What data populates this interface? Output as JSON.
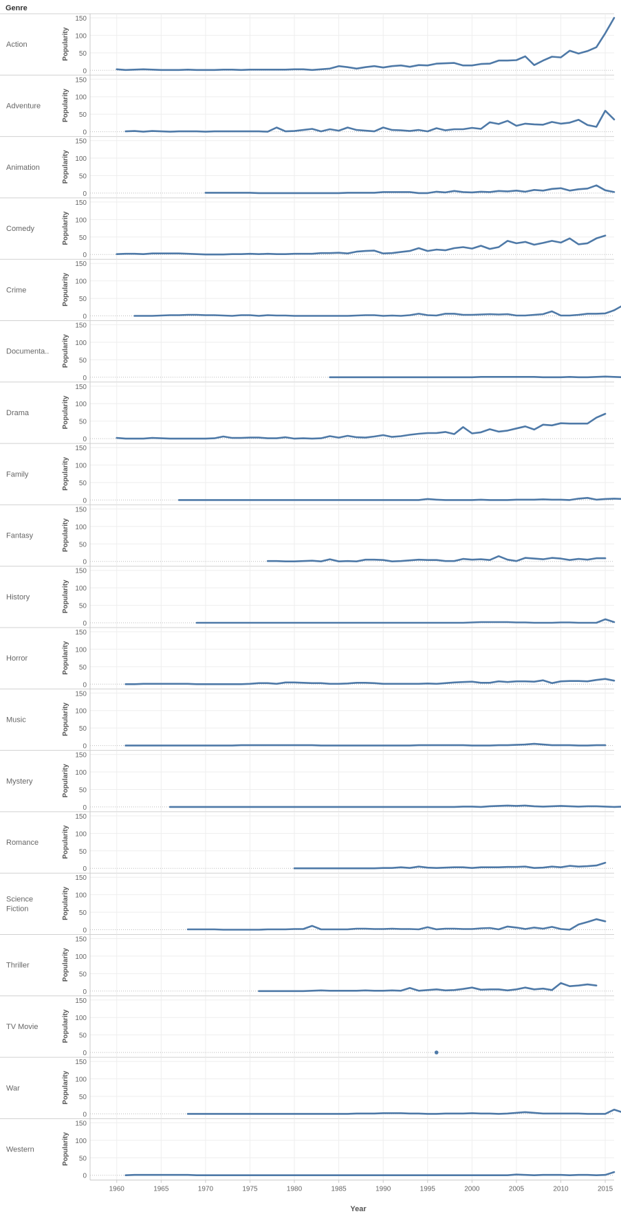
{
  "header": {
    "row_field": "Genre"
  },
  "chart_data": {
    "type": "line",
    "xlabel": "Year",
    "ylabel": "Popularity",
    "ylim": [
      0,
      150
    ],
    "yticks": [
      0,
      50,
      100,
      150
    ],
    "xlim": [
      1957,
      2016
    ],
    "xticks": [
      1960,
      1965,
      1970,
      1975,
      1980,
      1985,
      1990,
      1995,
      2000,
      2005,
      2010,
      2015
    ],
    "color": "#4e79a7",
    "grid": true,
    "panels": [
      {
        "name": "Action",
        "label_lines": [
          "Action"
        ],
        "start": 1960,
        "values": [
          3,
          1,
          2,
          3,
          2,
          1,
          1,
          1,
          2,
          1,
          1,
          1,
          2,
          2,
          1,
          2,
          2,
          2,
          2,
          2,
          3,
          3,
          1,
          3,
          5,
          12,
          9,
          5,
          9,
          12,
          8,
          12,
          14,
          10,
          15,
          14,
          19,
          20,
          21,
          14,
          14,
          18,
          19,
          28,
          28,
          29,
          40,
          15,
          28,
          39,
          37,
          56,
          48,
          55,
          66,
          106,
          150
        ]
      },
      {
        "name": "Adventure",
        "label_lines": [
          "Adventure"
        ],
        "start": 1961,
        "values": [
          1,
          2,
          0,
          2,
          1,
          0,
          1,
          1,
          1,
          0,
          1,
          1,
          1,
          1,
          1,
          1,
          0,
          12,
          1,
          2,
          5,
          8,
          1,
          7,
          3,
          12,
          5,
          3,
          1,
          12,
          5,
          4,
          2,
          5,
          1,
          10,
          4,
          7,
          7,
          11,
          8,
          27,
          22,
          31,
          17,
          23,
          21,
          20,
          28,
          23,
          26,
          34,
          19,
          14,
          60,
          35
        ]
      },
      {
        "name": "Animation",
        "label_lines": [
          "Animation"
        ],
        "start": 1970,
        "values": [
          1,
          1,
          1,
          1,
          1,
          1,
          0,
          0,
          0,
          0,
          0,
          0,
          0,
          0,
          0,
          0,
          1,
          1,
          1,
          1,
          3,
          3,
          3,
          3,
          0,
          0,
          4,
          2,
          6,
          3,
          2,
          4,
          3,
          6,
          5,
          7,
          4,
          9,
          7,
          12,
          14,
          7,
          11,
          13,
          22,
          8,
          3
        ]
      },
      {
        "name": "Comedy",
        "label_lines": [
          "Comedy"
        ],
        "start": 1960,
        "values": [
          1,
          2,
          2,
          1,
          3,
          3,
          3,
          3,
          2,
          1,
          0,
          0,
          0,
          1,
          1,
          2,
          1,
          2,
          1,
          1,
          2,
          2,
          2,
          4,
          4,
          5,
          3,
          8,
          10,
          11,
          3,
          4,
          7,
          10,
          18,
          10,
          14,
          12,
          18,
          21,
          17,
          25,
          16,
          21,
          39,
          32,
          36,
          28,
          33,
          39,
          34,
          46,
          29,
          32,
          46,
          54
        ]
      },
      {
        "name": "Crime",
        "label_lines": [
          "Crime"
        ],
        "start": 1962,
        "values": [
          0,
          0,
          0,
          1,
          2,
          2,
          3,
          3,
          2,
          2,
          1,
          0,
          2,
          2,
          0,
          2,
          1,
          1,
          0,
          0,
          0,
          0,
          0,
          0,
          0,
          1,
          2,
          2,
          0,
          1,
          0,
          2,
          6,
          2,
          1,
          6,
          6,
          3,
          3,
          4,
          5,
          4,
          5,
          1,
          1,
          3,
          5,
          13,
          1,
          1,
          3,
          6,
          6,
          7,
          16,
          30
        ]
      },
      {
        "name": "Documentary",
        "label_lines": [
          "Documenta.."
        ],
        "start": 1984,
        "values": [
          0,
          0,
          0,
          0,
          0,
          0,
          0,
          0,
          0,
          0,
          0,
          0,
          0,
          0,
          0,
          0,
          0,
          1,
          1,
          1,
          1,
          1,
          1,
          1,
          0,
          0,
          0,
          1,
          0,
          0,
          1,
          2,
          1,
          0
        ]
      },
      {
        "name": "Drama",
        "label_lines": [
          "Drama"
        ],
        "start": 1960,
        "values": [
          2,
          0,
          0,
          0,
          2,
          1,
          0,
          0,
          0,
          0,
          0,
          1,
          6,
          2,
          2,
          3,
          3,
          1,
          1,
          4,
          0,
          1,
          0,
          1,
          7,
          3,
          8,
          4,
          3,
          6,
          10,
          5,
          7,
          11,
          14,
          16,
          16,
          19,
          13,
          33,
          15,
          18,
          27,
          20,
          23,
          29,
          35,
          26,
          40,
          38,
          44,
          43,
          43,
          43,
          60,
          71
        ]
      },
      {
        "name": "Family",
        "label_lines": [
          "Family"
        ],
        "start": 1967,
        "values": [
          0,
          0,
          0,
          0,
          0,
          0,
          0,
          0,
          0,
          0,
          0,
          0,
          0,
          0,
          0,
          0,
          0,
          0,
          0,
          0,
          0,
          0,
          0,
          0,
          0,
          0,
          0,
          0,
          3,
          1,
          0,
          0,
          0,
          0,
          1,
          0,
          0,
          0,
          1,
          1,
          1,
          2,
          1,
          1,
          0,
          4,
          6,
          1,
          3,
          4,
          3,
          10
        ]
      },
      {
        "name": "Fantasy",
        "label_lines": [
          "Fantasy"
        ],
        "start": 1977,
        "values": [
          1,
          1,
          0,
          0,
          1,
          2,
          0,
          6,
          0,
          1,
          0,
          5,
          5,
          4,
          0,
          1,
          3,
          5,
          4,
          4,
          1,
          1,
          7,
          5,
          6,
          4,
          15,
          5,
          1,
          10,
          8,
          6,
          10,
          8,
          4,
          7,
          5,
          9,
          9
        ]
      },
      {
        "name": "History",
        "label_lines": [
          "History"
        ],
        "start": 1969,
        "values": [
          0,
          0,
          0,
          0,
          0,
          0,
          0,
          0,
          0,
          0,
          0,
          0,
          0,
          0,
          0,
          0,
          0,
          0,
          0,
          0,
          0,
          0,
          0,
          0,
          0,
          0,
          0,
          0,
          0,
          0,
          0,
          1,
          2,
          2,
          2,
          2,
          1,
          1,
          0,
          0,
          0,
          1,
          1,
          0,
          0,
          0,
          10,
          2
        ]
      },
      {
        "name": "Horror",
        "label_lines": [
          "Horror"
        ],
        "start": 1961,
        "values": [
          0,
          0,
          1,
          1,
          1,
          1,
          1,
          1,
          0,
          0,
          0,
          0,
          0,
          0,
          1,
          3,
          3,
          1,
          5,
          5,
          4,
          3,
          3,
          1,
          1,
          2,
          4,
          4,
          3,
          1,
          1,
          1,
          1,
          1,
          2,
          1,
          3,
          5,
          6,
          7,
          4,
          4,
          8,
          6,
          8,
          8,
          7,
          11,
          3,
          8,
          9,
          9,
          8,
          12,
          15,
          10
        ]
      },
      {
        "name": "Music",
        "label_lines": [
          "Music"
        ],
        "start": 1961,
        "values": [
          0,
          0,
          0,
          0,
          0,
          0,
          0,
          0,
          0,
          0,
          0,
          0,
          0,
          1,
          1,
          1,
          1,
          1,
          1,
          1,
          1,
          1,
          0,
          0,
          0,
          0,
          0,
          0,
          0,
          0,
          0,
          0,
          0,
          1,
          1,
          1,
          1,
          1,
          1,
          0,
          0,
          0,
          1,
          1,
          2,
          3,
          5,
          3,
          1,
          1,
          1,
          0,
          0,
          1,
          1
        ]
      },
      {
        "name": "Mystery",
        "label_lines": [
          "Mystery"
        ],
        "start": 1966,
        "values": [
          0,
          0,
          0,
          0,
          0,
          0,
          0,
          0,
          0,
          0,
          0,
          0,
          0,
          0,
          0,
          0,
          0,
          0,
          0,
          0,
          0,
          0,
          0,
          0,
          0,
          0,
          0,
          0,
          0,
          0,
          0,
          0,
          0,
          1,
          1,
          0,
          2,
          3,
          4,
          3,
          4,
          2,
          1,
          2,
          3,
          2,
          1,
          2,
          2,
          1,
          0,
          1,
          1,
          0,
          6,
          6
        ]
      },
      {
        "name": "Romance",
        "label_lines": [
          "Romance"
        ],
        "start": 1980,
        "values": [
          0,
          0,
          0,
          0,
          0,
          0,
          0,
          0,
          0,
          0,
          1,
          1,
          3,
          1,
          5,
          2,
          1,
          2,
          3,
          3,
          1,
          3,
          3,
          3,
          4,
          4,
          5,
          1,
          2,
          5,
          3,
          7,
          5,
          6,
          8,
          16
        ]
      },
      {
        "name": "Science Fiction",
        "label_lines": [
          "Science",
          "Fiction"
        ],
        "start": 1968,
        "values": [
          1,
          1,
          1,
          1,
          0,
          0,
          0,
          0,
          0,
          1,
          1,
          1,
          2,
          2,
          11,
          1,
          1,
          1,
          1,
          3,
          3,
          2,
          2,
          3,
          2,
          2,
          1,
          7,
          1,
          3,
          3,
          2,
          2,
          4,
          5,
          1,
          9,
          6,
          2,
          6,
          3,
          8,
          2,
          0,
          15,
          22,
          30,
          24
        ]
      },
      {
        "name": "Thriller",
        "label_lines": [
          "Thriller"
        ],
        "start": 1976,
        "values": [
          0,
          0,
          0,
          0,
          0,
          0,
          1,
          2,
          1,
          1,
          1,
          1,
          2,
          1,
          1,
          2,
          1,
          9,
          1,
          3,
          5,
          2,
          3,
          6,
          10,
          4,
          5,
          5,
          2,
          5,
          10,
          5,
          7,
          3,
          23,
          14,
          16,
          19,
          16
        ]
      },
      {
        "name": "TV Movie",
        "label_lines": [
          "TV Movie"
        ],
        "start": 1996,
        "values": [
          0
        ]
      },
      {
        "name": "War",
        "label_lines": [
          "War"
        ],
        "start": 1968,
        "values": [
          0,
          0,
          0,
          0,
          0,
          0,
          0,
          0,
          0,
          0,
          0,
          0,
          0,
          0,
          0,
          0,
          0,
          0,
          0,
          1,
          1,
          1,
          2,
          2,
          2,
          1,
          1,
          0,
          0,
          1,
          1,
          1,
          2,
          1,
          1,
          0,
          1,
          3,
          5,
          3,
          1,
          1,
          1,
          1,
          1,
          0,
          0,
          0,
          12,
          4
        ]
      },
      {
        "name": "Western",
        "label_lines": [
          "Western"
        ],
        "start": 1961,
        "values": [
          0,
          1,
          1,
          1,
          1,
          1,
          1,
          1,
          0,
          0,
          0,
          0,
          0,
          0,
          0,
          0,
          0,
          0,
          0,
          0,
          0,
          0,
          0,
          0,
          0,
          0,
          0,
          0,
          0,
          0,
          0,
          0,
          0,
          0,
          0,
          0,
          0,
          0,
          0,
          0,
          0,
          0,
          0,
          0,
          2,
          1,
          0,
          1,
          1,
          1,
          0,
          1,
          1,
          0,
          1,
          9
        ]
      }
    ]
  }
}
